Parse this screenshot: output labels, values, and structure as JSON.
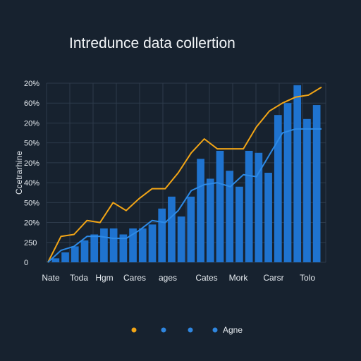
{
  "chart_data": {
    "type": "bar",
    "title": "Intredunce data collertion",
    "ylabel": "Ccetrarhine",
    "xlabel": "",
    "y_tick_labels": [
      "0",
      "250",
      "20%",
      "50%",
      "40%",
      "20%",
      "50%",
      "20%",
      "60%",
      "20%"
    ],
    "ylim": [
      0,
      9
    ],
    "grid": true,
    "x_tick_labels": [
      "Nate",
      "Toda",
      "Hgm",
      "Cares",
      "ages",
      "Cates",
      "Mork",
      "Carsr",
      "Tolo"
    ],
    "legend_placement": "bottom",
    "legend": [
      {
        "color": "#f2a516",
        "label": ""
      },
      {
        "color": "#2f86df",
        "label": ""
      },
      {
        "color": "#2f86df",
        "label": ""
      },
      {
        "color": "#2f86df",
        "label": "Agne"
      }
    ],
    "colors": {
      "background": "#17222f",
      "bars": "#1f73cf",
      "orange_line": "#f2a516",
      "blue_line": "#2d8ae6"
    },
    "series": [
      {
        "name": "",
        "kind": "bar",
        "values": [
          0.2,
          0.5,
          0.8,
          1.1,
          1.4,
          1.7,
          1.7,
          1.4,
          1.7,
          1.7,
          1.9,
          2.7,
          3.3,
          2.3,
          3.3,
          5.2,
          4.2,
          5.6,
          4.6,
          3.8,
          5.6,
          5.5,
          4.5,
          7.4,
          8.0,
          8.9,
          7.2,
          7.9
        ]
      },
      {
        "name": "",
        "kind": "line",
        "x": [
          0,
          1,
          2,
          3,
          4,
          5,
          6,
          7,
          8,
          9,
          10,
          11,
          12,
          13,
          14,
          15,
          16,
          17,
          18,
          19,
          20,
          21
        ],
        "values": [
          0.0,
          1.3,
          1.4,
          2.1,
          2.0,
          3.0,
          2.6,
          3.2,
          3.7,
          3.7,
          4.5,
          5.5,
          6.2,
          5.7,
          5.7,
          5.7,
          6.8,
          7.6,
          8.0,
          8.3,
          8.4,
          8.8
        ]
      },
      {
        "name": "",
        "kind": "line",
        "x": [
          0,
          1,
          2,
          3,
          4,
          5,
          6,
          7,
          8,
          9,
          10,
          11,
          12,
          13,
          14,
          15,
          16,
          17,
          18,
          19,
          20,
          21
        ],
        "values": [
          0.0,
          0.6,
          0.8,
          1.3,
          1.3,
          1.2,
          1.2,
          1.6,
          2.1,
          2.0,
          2.6,
          3.6,
          3.9,
          4.0,
          3.8,
          4.4,
          4.3,
          5.4,
          6.5,
          6.7,
          6.7,
          6.7
        ]
      }
    ]
  }
}
